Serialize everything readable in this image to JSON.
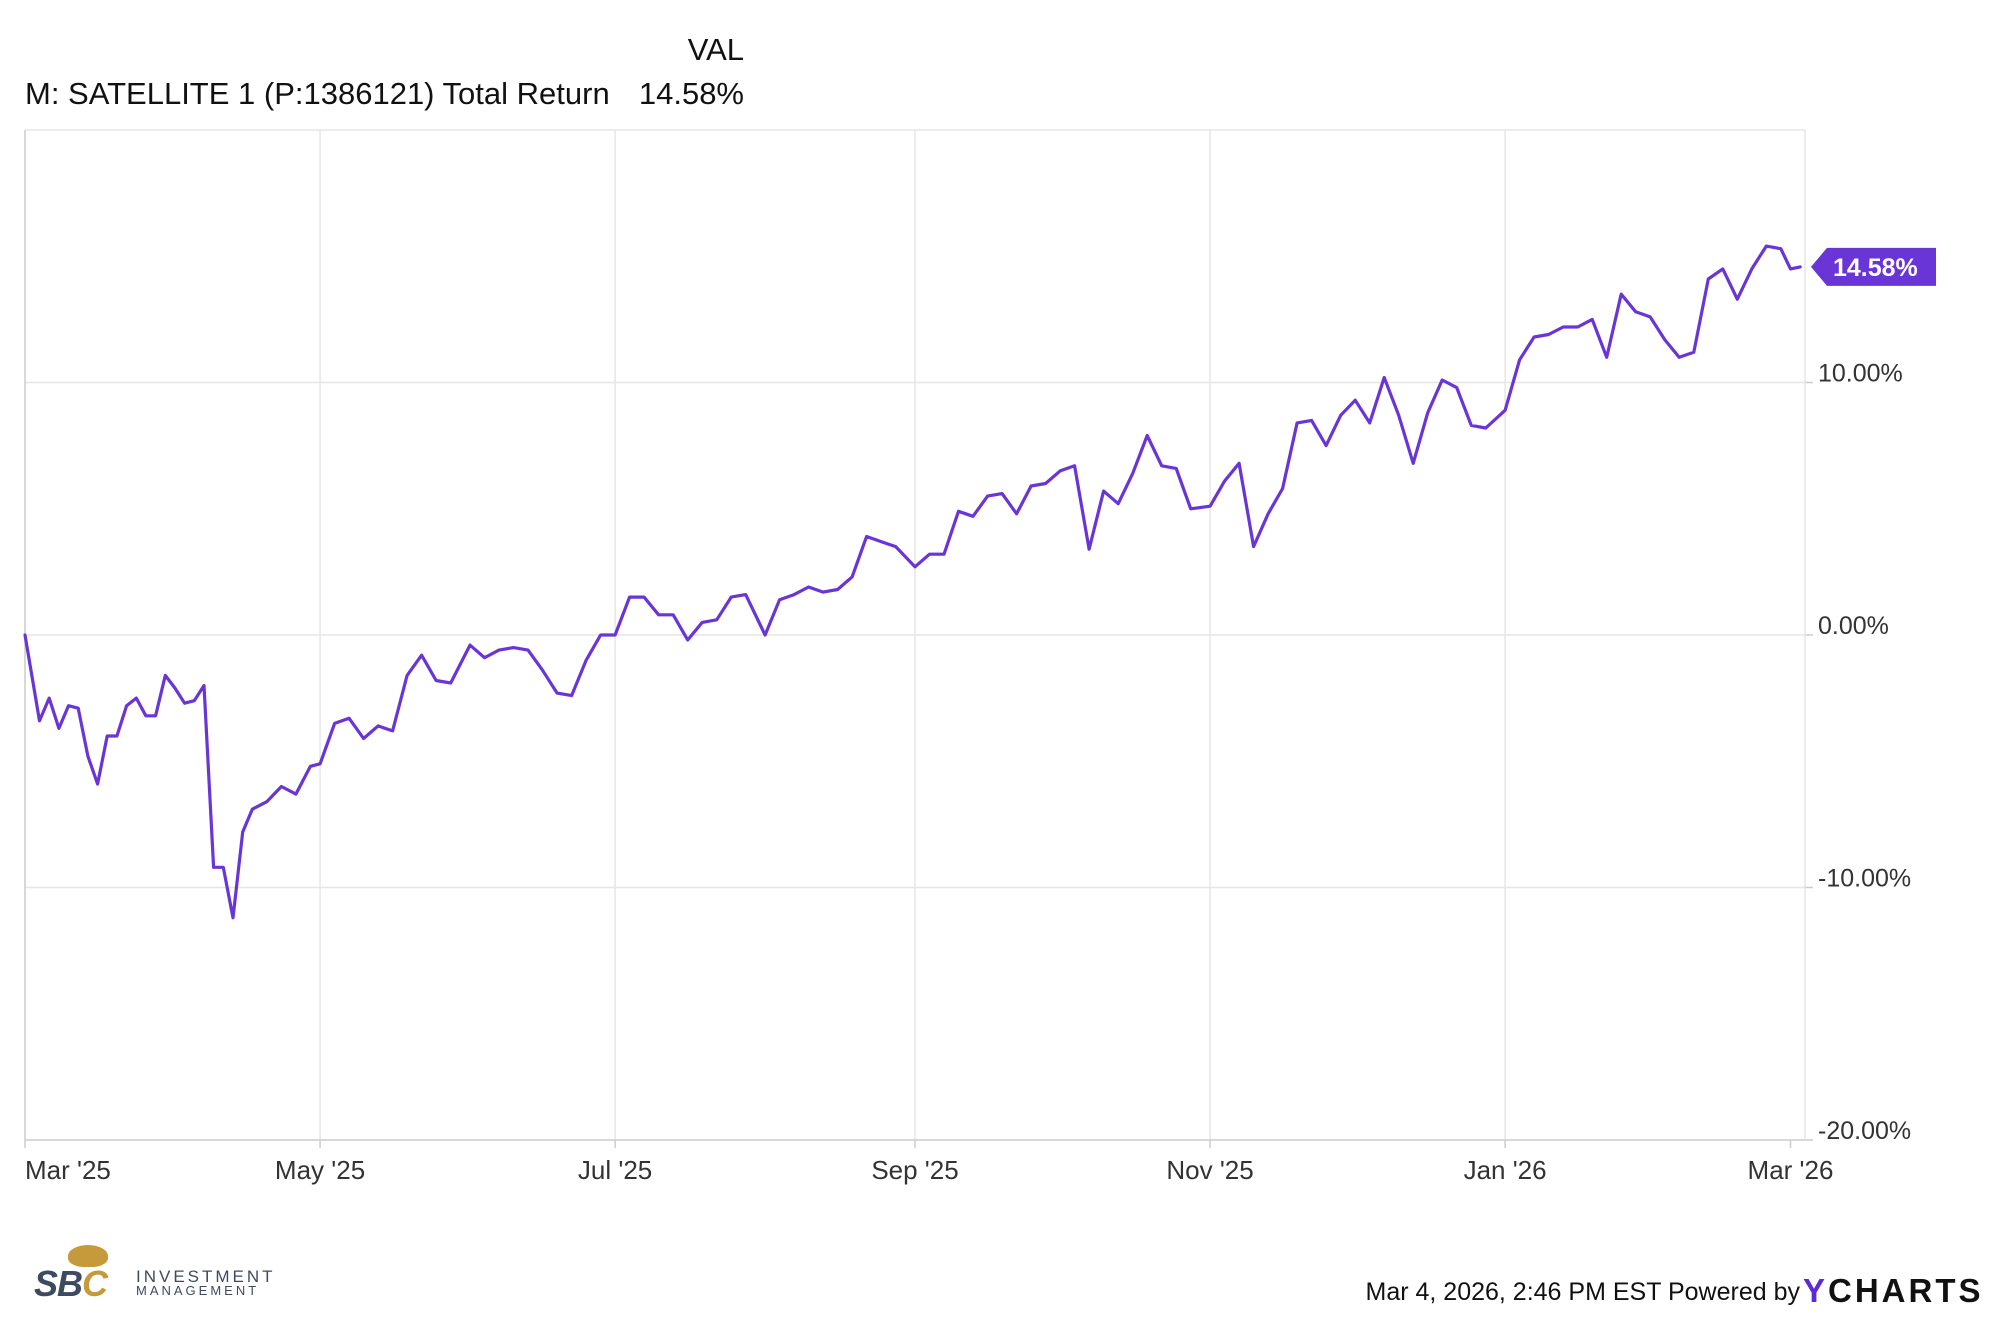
{
  "legend": {
    "header": "VAL",
    "series_name": "M: SATELLITE 1 (P:1386121) Total Return",
    "series_value": "14.58%"
  },
  "footer": {
    "timestamp": "Mar 4, 2026, 2:46 PM EST Powered by",
    "brand_y": "Y",
    "brand_rest": "CHARTS"
  },
  "logo": {
    "sbc_main": "SB",
    "sbc_accent": "C",
    "line1": "INVESTMENT",
    "line2": "MANAGEMENT"
  },
  "colors": {
    "series": "#6a35d6",
    "grid": "#e6e6e6",
    "brand_accent": "#5b2bd9",
    "logo_gold": "#c69a3a",
    "logo_navy": "#3c4a62"
  },
  "chart_data": {
    "type": "line",
    "title": "",
    "xlabel": "",
    "ylabel": "",
    "x_tick_labels": [
      "Mar '25",
      "May '25",
      "Jul '25",
      "Sep '25",
      "Nov '25",
      "Jan '26",
      "Mar '26"
    ],
    "x_tick_dates": [
      "2025-03-01",
      "2025-05-01",
      "2025-07-01",
      "2025-09-01",
      "2025-11-01",
      "2026-01-01",
      "2026-03-01"
    ],
    "y_tick_labels": [
      "10.00%",
      "0.00%",
      "-10.00%",
      "-20.00%"
    ],
    "y_tick_values": [
      10,
      0,
      -10,
      -20
    ],
    "ylim": [
      -20,
      20
    ],
    "last_value_label": "14.58%",
    "grid": true,
    "legend_position": "top-left",
    "series": [
      {
        "name": "M: SATELLITE 1 (P:1386121) Total Return",
        "x": [
          "2025-03-01",
          "2025-03-04",
          "2025-03-06",
          "2025-03-08",
          "2025-03-10",
          "2025-03-12",
          "2025-03-14",
          "2025-03-16",
          "2025-03-18",
          "2025-03-20",
          "2025-03-22",
          "2025-03-24",
          "2025-03-26",
          "2025-03-28",
          "2025-03-30",
          "2025-04-01",
          "2025-04-03",
          "2025-04-05",
          "2025-04-07",
          "2025-04-09",
          "2025-04-11",
          "2025-04-13",
          "2025-04-15",
          "2025-04-17",
          "2025-04-20",
          "2025-04-23",
          "2025-04-26",
          "2025-04-29",
          "2025-05-01",
          "2025-05-04",
          "2025-05-07",
          "2025-05-10",
          "2025-05-13",
          "2025-05-16",
          "2025-05-19",
          "2025-05-22",
          "2025-05-25",
          "2025-05-28",
          "2025-06-01",
          "2025-06-04",
          "2025-06-07",
          "2025-06-10",
          "2025-06-13",
          "2025-06-16",
          "2025-06-19",
          "2025-06-22",
          "2025-06-25",
          "2025-06-28",
          "2025-07-01",
          "2025-07-04",
          "2025-07-07",
          "2025-07-10",
          "2025-07-13",
          "2025-07-16",
          "2025-07-19",
          "2025-07-22",
          "2025-07-25",
          "2025-07-28",
          "2025-08-01",
          "2025-08-04",
          "2025-08-07",
          "2025-08-10",
          "2025-08-13",
          "2025-08-16",
          "2025-08-19",
          "2025-08-22",
          "2025-08-25",
          "2025-08-28",
          "2025-09-01",
          "2025-09-04",
          "2025-09-07",
          "2025-09-10",
          "2025-09-13",
          "2025-09-16",
          "2025-09-19",
          "2025-09-22",
          "2025-09-25",
          "2025-09-28",
          "2025-10-01",
          "2025-10-04",
          "2025-10-07",
          "2025-10-10",
          "2025-10-13",
          "2025-10-16",
          "2025-10-19",
          "2025-10-22",
          "2025-10-25",
          "2025-10-28",
          "2025-11-01",
          "2025-11-04",
          "2025-11-07",
          "2025-11-10",
          "2025-11-13",
          "2025-11-16",
          "2025-11-19",
          "2025-11-22",
          "2025-11-25",
          "2025-11-28",
          "2025-12-01",
          "2025-12-04",
          "2025-12-07",
          "2025-12-10",
          "2025-12-13",
          "2025-12-16",
          "2025-12-19",
          "2025-12-22",
          "2025-12-25",
          "2025-12-28",
          "2026-01-01",
          "2026-01-04",
          "2026-01-07",
          "2026-01-10",
          "2026-01-13",
          "2026-01-16",
          "2026-01-19",
          "2026-01-22",
          "2026-01-25",
          "2026-01-28",
          "2026-01-31",
          "2026-02-03",
          "2026-02-06",
          "2026-02-09",
          "2026-02-12",
          "2026-02-15",
          "2026-02-18",
          "2026-02-21",
          "2026-02-24",
          "2026-02-27",
          "2026-03-01",
          "2026-03-03"
        ],
        "values": [
          0.0,
          -3.4,
          -2.5,
          -3.7,
          -2.8,
          -2.9,
          -4.8,
          -5.9,
          -4.0,
          -4.0,
          -2.8,
          -2.5,
          -3.2,
          -3.2,
          -1.6,
          -2.1,
          -2.7,
          -2.6,
          -2.0,
          -9.2,
          -9.2,
          -11.2,
          -7.8,
          -6.9,
          -6.6,
          -6.0,
          -6.3,
          -5.2,
          -5.1,
          -3.5,
          -3.3,
          -4.1,
          -3.6,
          -3.8,
          -1.6,
          -0.8,
          -1.8,
          -1.9,
          -0.4,
          -0.9,
          -0.6,
          -0.5,
          -0.6,
          -1.4,
          -2.3,
          -2.4,
          -1.0,
          0.0,
          0.0,
          1.5,
          1.5,
          0.8,
          0.8,
          -0.2,
          0.5,
          0.6,
          1.5,
          1.6,
          0.0,
          1.4,
          1.6,
          1.9,
          1.7,
          1.8,
          2.3,
          3.9,
          3.7,
          3.5,
          2.7,
          3.2,
          3.2,
          4.9,
          4.7,
          5.5,
          5.6,
          4.8,
          5.9,
          6.0,
          6.5,
          6.7,
          3.4,
          5.7,
          5.2,
          6.4,
          7.9,
          6.7,
          6.6,
          5.0,
          5.1,
          6.1,
          6.8,
          3.5,
          4.8,
          5.8,
          8.4,
          8.5,
          7.5,
          8.7,
          9.3,
          8.4,
          10.2,
          8.7,
          6.8,
          8.8,
          10.1,
          9.8,
          8.3,
          8.2,
          8.9,
          10.9,
          11.8,
          11.9,
          12.2,
          12.2,
          12.5,
          11.0,
          13.5,
          12.8,
          12.6,
          11.7,
          11.0,
          11.2,
          14.1,
          14.5,
          13.3,
          14.5,
          15.4,
          15.3,
          14.5,
          14.58
        ]
      }
    ]
  }
}
